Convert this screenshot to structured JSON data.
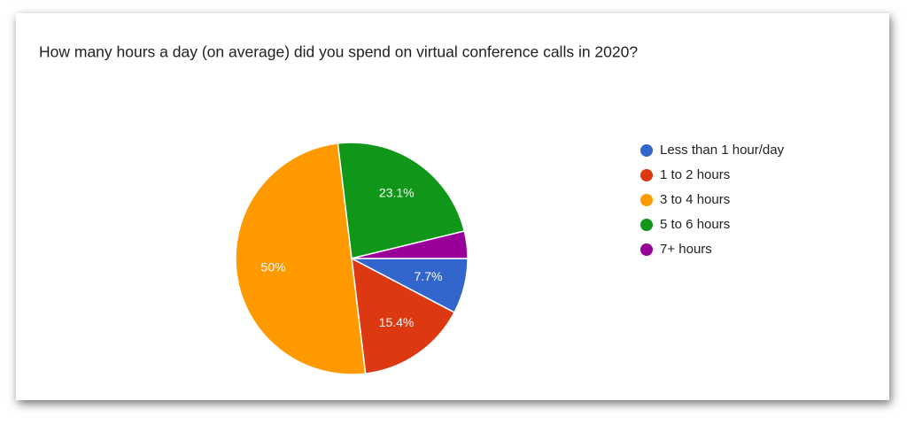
{
  "chart_data": {
    "type": "pie",
    "title": "How many hours a day (on average) did you spend on virtual conference calls in 2020?",
    "categories": [
      "Less than 1 hour/day",
      "1 to 2 hours",
      "3 to 4 hours",
      "5 to 6 hours",
      "7+ hours"
    ],
    "values": [
      7.7,
      15.4,
      50,
      23.1,
      3.8
    ],
    "value_labels": [
      "7.7%",
      "15.4%",
      "50%",
      "23.1%",
      null
    ],
    "colors": [
      "#3366cc",
      "#dc3912",
      "#ff9900",
      "#109618",
      "#990099"
    ],
    "legend": "right"
  }
}
